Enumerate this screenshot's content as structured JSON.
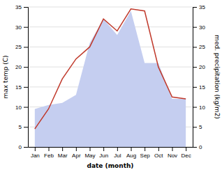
{
  "chart_data": {
    "type": "line",
    "xlabel": "date (month)",
    "ylabel": "max temp (C)",
    "y2label": "med. precipitation (kg/m2)",
    "categories": [
      "Jan",
      "Feb",
      "Mar",
      "Apr",
      "May",
      "Jun",
      "Jul",
      "Aug",
      "Sep",
      "Oct",
      "Nov",
      "Dec"
    ],
    "series": [
      {
        "type": "area",
        "axis": "y2",
        "color": "#c5cef0",
        "values": [
          9.5,
          10.5,
          11.0,
          13.0,
          26.0,
          32.0,
          28.0,
          34.0,
          21.0,
          21.0,
          12.0,
          12.0
        ]
      },
      {
        "type": "line",
        "color": "#c0392b",
        "values": [
          4.5,
          9.5,
          17.0,
          22.0,
          25.0,
          32.0,
          29.0,
          34.5,
          34.0,
          20.0,
          12.5,
          12.0
        ]
      }
    ],
    "ylim": [
      0,
      35
    ],
    "yticks": [
      0,
      5,
      10,
      15,
      20,
      25,
      30,
      35
    ],
    "y2lim": [
      0,
      35
    ],
    "y2ticks": [
      0,
      5,
      10,
      15,
      20,
      25,
      30,
      35
    ],
    "grid": true
  }
}
